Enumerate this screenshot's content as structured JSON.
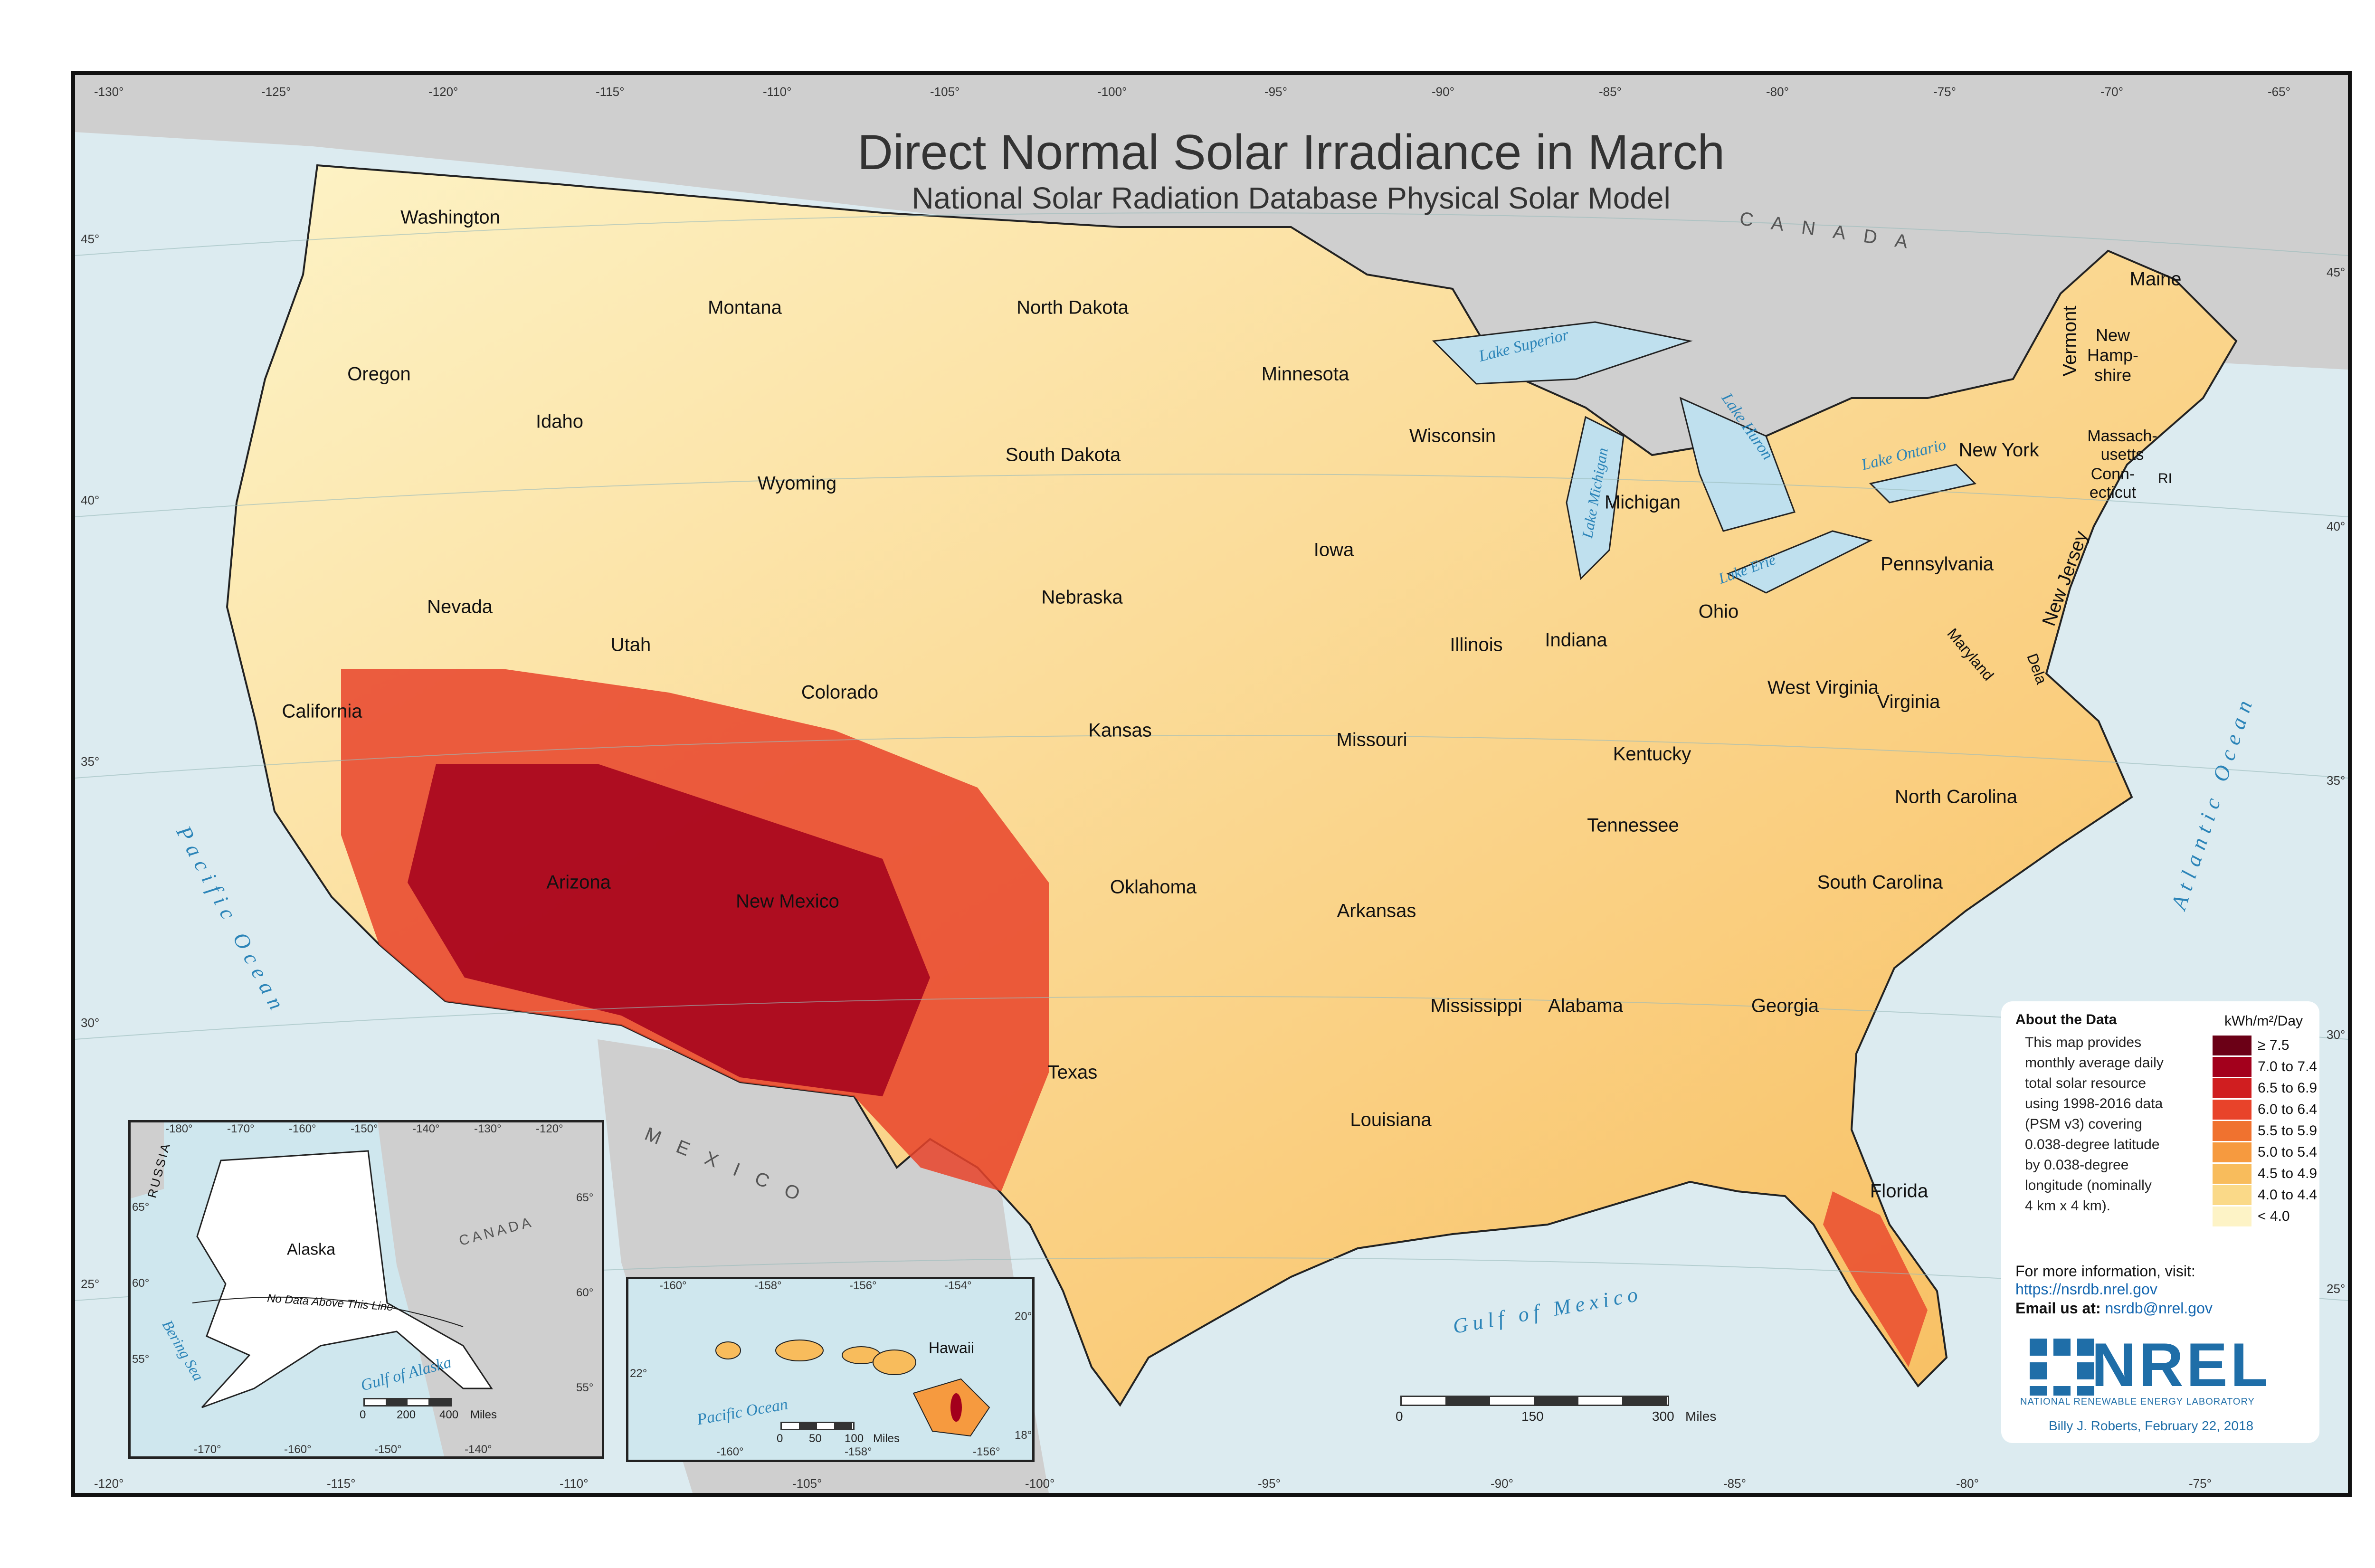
{
  "title": "Direct Normal Solar Irradiance in March",
  "subtitle": "National Solar Radiation Database Physical Solar Model",
  "colors": {
    "ocean": "#dcebf0",
    "land_other": "#cfcfcf",
    "border": "#222222",
    "water_label": "#2b84b8",
    "nrel_blue": "#1f6ea8"
  },
  "top_longitudes": [
    "-130°",
    "-125°",
    "-120°",
    "-115°",
    "-110°",
    "-105°",
    "-100°",
    "-95°",
    "-90°",
    "-85°",
    "-80°",
    "-75°",
    "-70°",
    "-65°"
  ],
  "bottom_longitudes": [
    "-120°",
    "-115°",
    "-110°",
    "-105°",
    "-100°",
    "-95°",
    "-90°",
    "-85°",
    "-80°",
    "-75°"
  ],
  "left_latitudes": [
    "45°",
    "40°",
    "35°",
    "30°",
    "25°"
  ],
  "right_latitudes": [
    "45°",
    "40°",
    "35°",
    "30°",
    "25°"
  ],
  "states": [
    "Washington",
    "Oregon",
    "California",
    "Nevada",
    "Idaho",
    "Montana",
    "Wyoming",
    "Utah",
    "Arizona",
    "Colorado",
    "New Mexico",
    "North Dakota",
    "South Dakota",
    "Nebraska",
    "Kansas",
    "Oklahoma",
    "Texas",
    "Minnesota",
    "Iowa",
    "Missouri",
    "Arkansas",
    "Louisiana",
    "Wisconsin",
    "Illinois",
    "Mississippi",
    "Michigan",
    "Indiana",
    "Kentucky",
    "Tennessee",
    "Alabama",
    "Ohio",
    "Georgia",
    "Florida",
    "South Carolina",
    "North Carolina",
    "Virginia",
    "West Virginia",
    "Pennsylvania",
    "New York",
    "New Jersey",
    "Maryland",
    "Dela",
    "Vermont",
    "New Hamp-shire",
    "Maine",
    "Massach-usetts",
    "Conn-ecticut",
    "RI"
  ],
  "water_labels": [
    "Lake Superior",
    "Lake Huron",
    "Lake Michigan",
    "Lake Ontario",
    "Lake Erie",
    "Pacific Ocean",
    "Atlantic Ocean",
    "Gulf of Mexico"
  ],
  "countries": [
    "CANADA",
    "MEXICO"
  ],
  "legend": {
    "about_title": "About the Data",
    "about_lines": [
      "This map provides",
      "monthly average daily",
      "total solar resource",
      "using 1998-2016 data",
      "(PSM v3) covering",
      "0.038-degree latitude",
      "by 0.038-degree",
      "longitude (nominally",
      "4 km x 4 km)."
    ],
    "unit": "kWh/m²/Day",
    "classes": [
      {
        "label": "≥ 7.5",
        "color": "#6b0016"
      },
      {
        "label": "7.0 to 7.4",
        "color": "#a3001c"
      },
      {
        "label": "6.5 to 6.9",
        "color": "#d01e20"
      },
      {
        "label": "6.0 to 6.4",
        "color": "#e8432a"
      },
      {
        "label": "5.5 to 5.9",
        "color": "#f0722f"
      },
      {
        "label": "5.0 to 5.4",
        "color": "#f69a3f"
      },
      {
        "label": "4.5 to 4.9",
        "color": "#f8bc5c"
      },
      {
        "label": "4.0 to 4.4",
        "color": "#fad988"
      },
      {
        "label": "< 4.0",
        "color": "#fdf3c6"
      }
    ],
    "more_info": "For more information, visit:",
    "url": "https://nsrdb.nrel.gov",
    "email_label": "Email us at:",
    "email": "nsrdb@nrel.gov",
    "logo_text": "NREL",
    "logo_sub": "NATIONAL RENEWABLE ENERGY LABORATORY",
    "credit": "Billy J. Roberts,  February 22, 2018"
  },
  "alaska_inset": {
    "top_longitudes": [
      "-180°",
      "-170°",
      "-160°",
      "-150°",
      "-140°",
      "-130°",
      "-120°"
    ],
    "bottom_longitudes": [
      "-170°",
      "-160°",
      "-150°",
      "-140°"
    ],
    "left_latitudes": [
      "65°",
      "60°",
      "55°"
    ],
    "right_latitudes": [
      "65°",
      "60°",
      "55°"
    ],
    "labels": [
      "Alaska",
      "RUSSIA",
      "CANADA",
      "Bering Sea",
      "Gulf of Alaska"
    ],
    "note": "No Data Above This Line",
    "scale": [
      "0",
      "200",
      "400",
      "Miles"
    ]
  },
  "hawaii_inset": {
    "top_longitudes": [
      "-160°",
      "-158°",
      "-156°",
      "-154°"
    ],
    "bottom_longitudes": [
      "-160°",
      "-158°",
      "-156°"
    ],
    "right_latitudes": [
      "20°",
      "18°"
    ],
    "left_latitudes": [
      "22°"
    ],
    "labels": [
      "Hawaii",
      "Pacific Ocean"
    ],
    "scale": [
      "0",
      "50",
      "100",
      "Miles"
    ]
  },
  "main_scale": [
    "0",
    "150",
    "300",
    "Miles"
  ]
}
